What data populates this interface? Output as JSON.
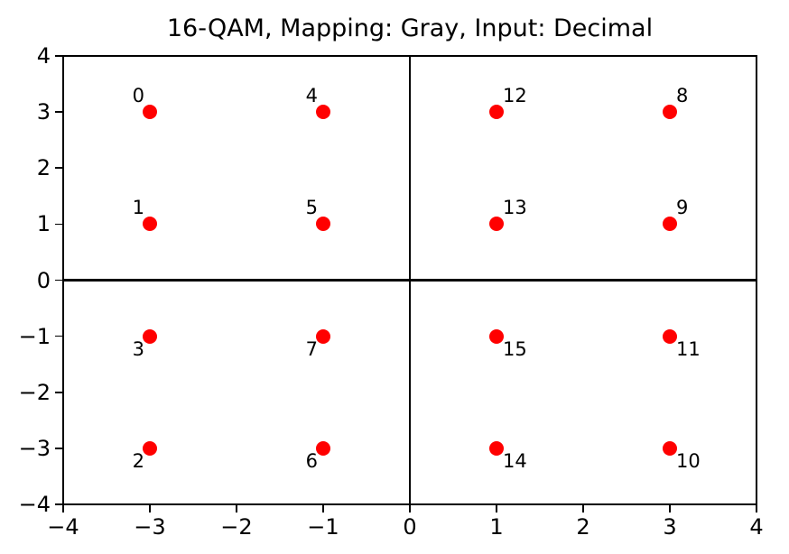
{
  "chart_data": {
    "type": "scatter",
    "title": "16-QAM, Mapping: Gray, Input: Decimal",
    "xlabel": "",
    "ylabel": "",
    "xlim": [
      -4,
      4
    ],
    "ylim": [
      -4,
      4
    ],
    "grid": true,
    "legend": "none",
    "zero_axis_lines": true,
    "colors": {
      "marker": "#ff0000",
      "grid": "#b0b0b0",
      "axis": "#000000",
      "background": "#ffffff"
    },
    "x_tick_values": [
      -4,
      -3,
      -2,
      -1,
      0,
      1,
      2,
      3,
      4
    ],
    "x_tick_labels": [
      "−4",
      "−3",
      "−2",
      "−1",
      "0",
      "1",
      "2",
      "3",
      "4"
    ],
    "y_tick_values": [
      -4,
      -3,
      -2,
      -1,
      0,
      1,
      2,
      3,
      4
    ],
    "y_tick_labels": [
      "−4",
      "−3",
      "−2",
      "−1",
      "0",
      "1",
      "2",
      "3",
      "4"
    ],
    "points": [
      {
        "label": "0",
        "i": -3,
        "q": 3
      },
      {
        "label": "1",
        "i": -3,
        "q": 1
      },
      {
        "label": "2",
        "i": -3,
        "q": -3
      },
      {
        "label": "3",
        "i": -3,
        "q": -1
      },
      {
        "label": "4",
        "i": -1,
        "q": 3
      },
      {
        "label": "5",
        "i": -1,
        "q": 1
      },
      {
        "label": "6",
        "i": -1,
        "q": -3
      },
      {
        "label": "7",
        "i": -1,
        "q": -1
      },
      {
        "label": "8",
        "i": 3,
        "q": 3
      },
      {
        "label": "9",
        "i": 3,
        "q": 1
      },
      {
        "label": "10",
        "i": 3,
        "q": -3
      },
      {
        "label": "11",
        "i": 3,
        "q": -1
      },
      {
        "label": "12",
        "i": 1,
        "q": 3
      },
      {
        "label": "13",
        "i": 1,
        "q": 1
      },
      {
        "label": "14",
        "i": 1,
        "q": -3
      },
      {
        "label": "15",
        "i": 1,
        "q": -1
      }
    ]
  }
}
